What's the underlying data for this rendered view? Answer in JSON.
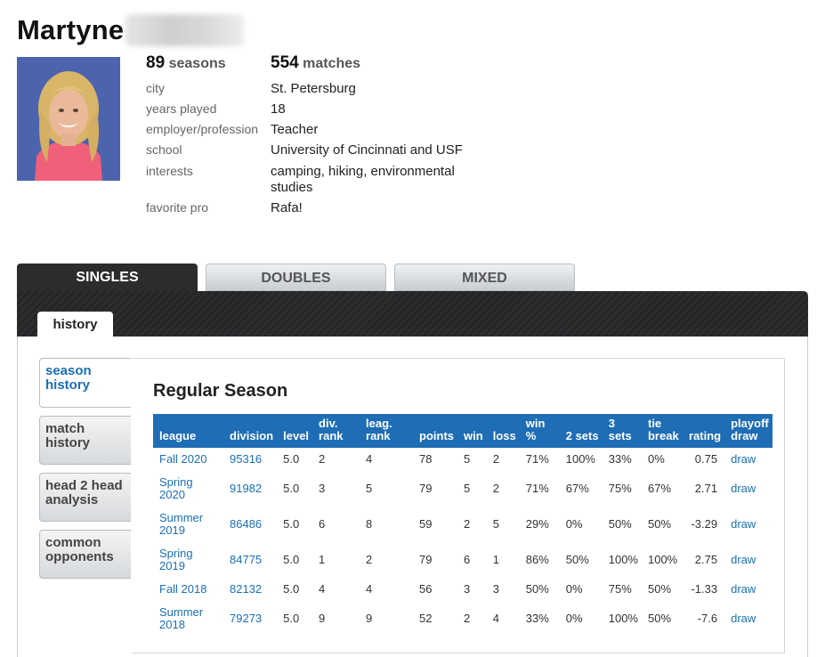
{
  "profile": {
    "first_name": "Martyne",
    "seasons_count": "89",
    "seasons_label": "seasons",
    "matches_count": "554",
    "matches_label": "matches",
    "details": [
      {
        "label": "city",
        "value": "St. Petersburg"
      },
      {
        "label": "years played",
        "value": "18"
      },
      {
        "label": "employer/profession",
        "value": "Teacher"
      },
      {
        "label": "school",
        "value": "University of Cincinnati and USF"
      },
      {
        "label": "interests",
        "value": "camping, hiking, environmental studies"
      },
      {
        "label": "favorite pro",
        "value": "Rafa!"
      }
    ]
  },
  "tabs": {
    "main": [
      "SINGLES",
      "DOUBLES",
      "MIXED"
    ],
    "active_main": "SINGLES",
    "sub": "history"
  },
  "sidebar": [
    {
      "label": "season history",
      "active": true
    },
    {
      "label": "match history",
      "active": false
    },
    {
      "label": "head 2 head analysis",
      "active": false
    },
    {
      "label": "common opponents",
      "active": false
    }
  ],
  "section_title": "Regular Season",
  "table": {
    "headers": [
      "league",
      "division",
      "level",
      "div. rank",
      "leag. rank",
      "points",
      "win",
      "loss",
      "win %",
      "2 sets",
      "3 sets",
      "tie break",
      "rating",
      "playoff draw"
    ],
    "rows": [
      [
        "Fall 2020",
        "95316",
        "5.0",
        "2",
        "4",
        "78",
        "5",
        "2",
        "71%",
        "100%",
        "33%",
        "0%",
        "0.75",
        "draw"
      ],
      [
        "Spring 2020",
        "91982",
        "5.0",
        "3",
        "5",
        "79",
        "5",
        "2",
        "71%",
        "67%",
        "75%",
        "67%",
        "2.71",
        "draw"
      ],
      [
        "Summer 2019",
        "86486",
        "5.0",
        "6",
        "8",
        "59",
        "2",
        "5",
        "29%",
        "0%",
        "50%",
        "50%",
        "-3.29",
        "draw"
      ],
      [
        "Spring 2019",
        "84775",
        "5.0",
        "1",
        "2",
        "79",
        "6",
        "1",
        "86%",
        "50%",
        "100%",
        "100%",
        "2.75",
        "draw"
      ],
      [
        "Fall 2018",
        "82132",
        "5.0",
        "4",
        "4",
        "56",
        "3",
        "3",
        "50%",
        "0%",
        "75%",
        "50%",
        "-1.33",
        "draw"
      ],
      [
        "Summer 2018",
        "79273",
        "5.0",
        "9",
        "9",
        "52",
        "2",
        "4",
        "33%",
        "0%",
        "100%",
        "50%",
        "-7.6",
        "draw"
      ]
    ]
  },
  "colors": {
    "accent": "#1f6db5",
    "link": "#1a6fb5",
    "dark_band": "#2a2c2e"
  }
}
